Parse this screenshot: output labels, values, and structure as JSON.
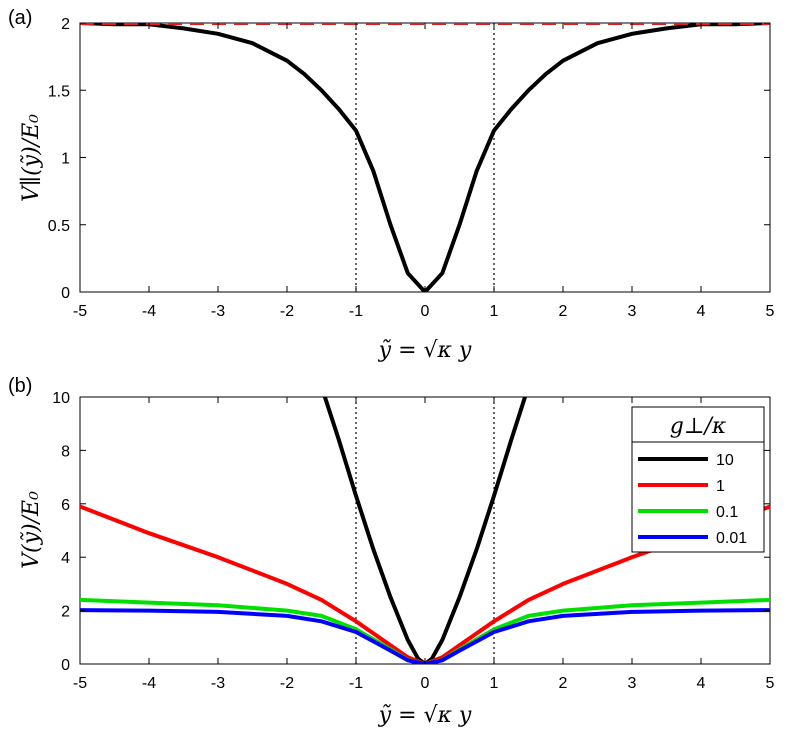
{
  "chart_data": [
    {
      "type": "line",
      "panel_label": "(a)",
      "xlabel": "ỹ = √κ y",
      "ylabel": "V∥(ỹ)/E₀",
      "xlim": [
        -5,
        5
      ],
      "ylim": [
        0,
        2
      ],
      "xticks": [
        "-5",
        "-4",
        "-3",
        "-2",
        "-1",
        "0",
        "1",
        "2",
        "3",
        "4",
        "5"
      ],
      "yticks": [
        "0",
        "0.5",
        "1",
        "1.5",
        "2"
      ],
      "vlines": [
        -1,
        1
      ],
      "colors": {
        "curve": "#000000",
        "asymptote": "#e41a1c"
      },
      "series": [
        {
          "color": "#000000",
          "style": "solid",
          "x": [
            -5,
            -4.5,
            -4,
            -3.5,
            -3,
            -2.5,
            -2,
            -1.75,
            -1.5,
            -1.25,
            -1,
            -0.75,
            -0.5,
            -0.25,
            0,
            0.25,
            0.5,
            0.75,
            1,
            1.25,
            1.5,
            1.75,
            2,
            2.5,
            3,
            3.5,
            4,
            4.5,
            5
          ],
          "y": [
            2.0,
            1.99,
            1.99,
            1.96,
            1.92,
            1.85,
            1.72,
            1.62,
            1.5,
            1.36,
            1.2,
            0.9,
            0.5,
            0.14,
            0,
            0.14,
            0.5,
            0.9,
            1.2,
            1.36,
            1.5,
            1.62,
            1.72,
            1.85,
            1.92,
            1.96,
            1.99,
            1.99,
            2.0
          ]
        },
        {
          "color": "#e41a1c",
          "style": "dashed",
          "x": [
            -5,
            5
          ],
          "y": [
            2,
            2
          ]
        }
      ]
    },
    {
      "type": "line",
      "panel_label": "(b)",
      "xlabel": "ỹ = √κ y",
      "ylabel": "V(ỹ)/E₀",
      "xlim": [
        -5,
        5
      ],
      "ylim": [
        0,
        10
      ],
      "xticks": [
        "-5",
        "-4",
        "-3",
        "-2",
        "-1",
        "0",
        "1",
        "2",
        "3",
        "4",
        "5"
      ],
      "yticks": [
        "0",
        "2",
        "4",
        "6",
        "8",
        "10"
      ],
      "vlines": [
        -1,
        1
      ],
      "legend": {
        "title": "g⊥/κ",
        "position": "top-right"
      },
      "series": [
        {
          "name": "10",
          "color": "#000000",
          "x": [
            -1.45,
            -1.25,
            -1,
            -0.75,
            -0.5,
            -0.25,
            -0.1,
            0,
            0.1,
            0.25,
            0.5,
            0.75,
            1,
            1.25,
            1.45
          ],
          "y": [
            10,
            8.4,
            6.3,
            4.3,
            2.5,
            0.9,
            0.2,
            0,
            0.2,
            0.9,
            2.5,
            4.3,
            6.3,
            8.4,
            10
          ]
        },
        {
          "name": "1",
          "color": "#ff0000",
          "x": [
            -5,
            -4,
            -3,
            -2,
            -1.5,
            -1,
            -0.5,
            -0.25,
            0,
            0.25,
            0.5,
            1,
            1.5,
            2,
            3,
            4,
            5
          ],
          "y": [
            5.9,
            4.9,
            4.0,
            3.0,
            2.4,
            1.6,
            0.7,
            0.25,
            0,
            0.25,
            0.7,
            1.6,
            2.4,
            3.0,
            4.0,
            4.9,
            5.9
          ]
        },
        {
          "name": "0.1",
          "color": "#00e000",
          "x": [
            -5,
            -4,
            -3,
            -2,
            -1.5,
            -1,
            -0.5,
            -0.25,
            0,
            0.25,
            0.5,
            1,
            1.5,
            2,
            3,
            4,
            5
          ],
          "y": [
            2.4,
            2.3,
            2.2,
            2.0,
            1.8,
            1.3,
            0.55,
            0.15,
            0,
            0.15,
            0.55,
            1.3,
            1.8,
            2.0,
            2.2,
            2.3,
            2.4
          ]
        },
        {
          "name": "0.01",
          "color": "#0000ff",
          "x": [
            -5,
            -4,
            -3,
            -2,
            -1.5,
            -1,
            -0.5,
            -0.25,
            0,
            0.25,
            0.5,
            1,
            1.5,
            2,
            3,
            4,
            5
          ],
          "y": [
            2.02,
            2.0,
            1.95,
            1.8,
            1.6,
            1.2,
            0.5,
            0.14,
            0,
            0.14,
            0.5,
            1.2,
            1.6,
            1.8,
            1.95,
            2.0,
            2.02
          ]
        }
      ]
    }
  ]
}
